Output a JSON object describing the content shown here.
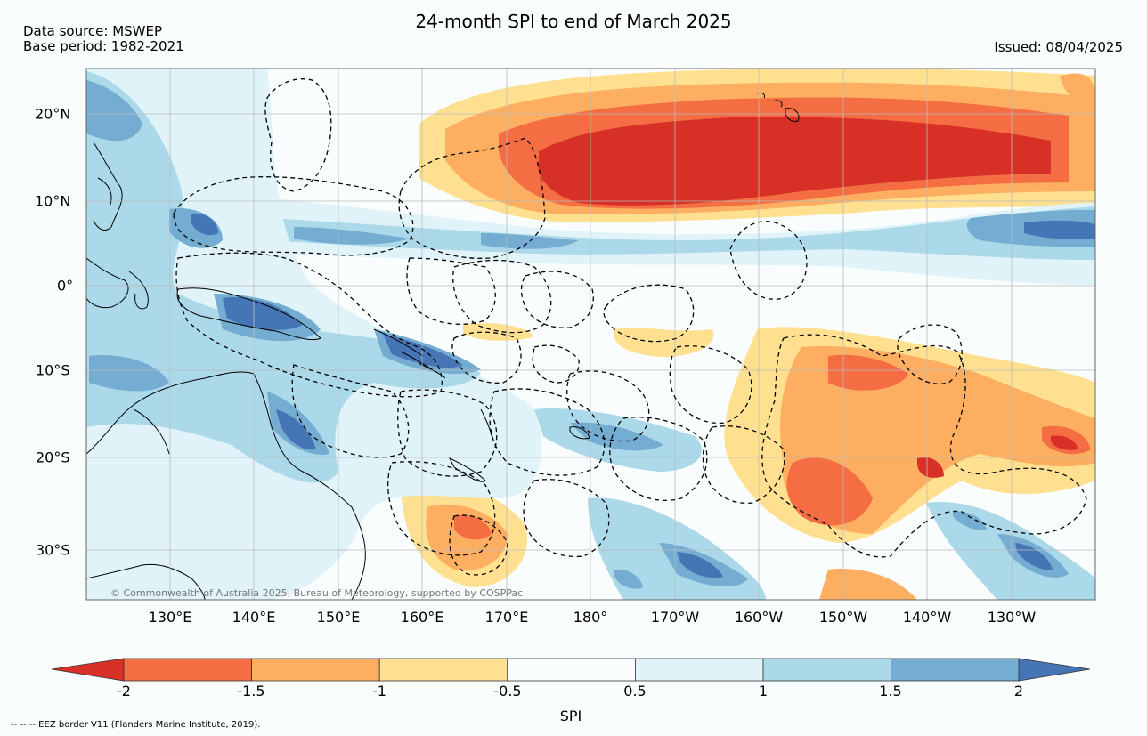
{
  "header": {
    "title": "24-month SPI to end of March 2025",
    "data_source": "Data source: MSWEP",
    "base_period": "Base period: 1982-2021",
    "issued": "Issued: 08/04/2025"
  },
  "map": {
    "longitude_labels": [
      "130°E",
      "140°E",
      "150°E",
      "160°E",
      "170°E",
      "180°",
      "170°W",
      "160°W",
      "150°W",
      "140°W",
      "130°W"
    ],
    "latitude_labels": [
      "20°N",
      "10°N",
      "0°",
      "10°S",
      "20°S",
      "30°S"
    ],
    "copyright": "© Commonwealth of Australia 2025, Bureau of Meteorology, supported by COSPPac",
    "colors": {
      "very_dry": "#d73027",
      "dry_strong": "#f46d43",
      "dry": "#fdae61",
      "dry_mild": "#fee090",
      "neutral": "#f9fdfd",
      "wet_mild": "#e0f3f8",
      "wet": "#abd9e9",
      "wet_strong": "#74add1",
      "very_wet": "#4575b4",
      "land_line": "#000000"
    }
  },
  "colorbar": {
    "label": "SPI",
    "ticks": [
      "-2",
      "-1.5",
      "-1",
      "-0.5",
      "0.5",
      "1",
      "1.5",
      "2"
    ],
    "colors": [
      "#d73027",
      "#f46d43",
      "#fdae61",
      "#fee090",
      "#f9fdfd",
      "#e0f3f8",
      "#abd9e9",
      "#74add1",
      "#4575b4"
    ]
  },
  "footnote": "--  --  -- EEZ border V11 (Flanders Marine Institute, 2019)."
}
